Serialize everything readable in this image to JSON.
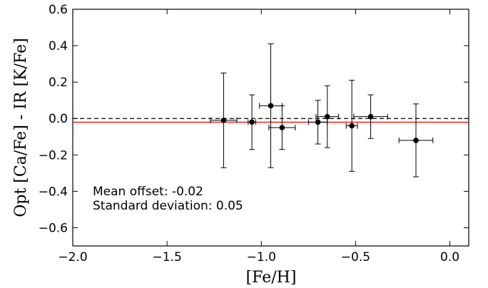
{
  "chart_data": {
    "type": "scatter",
    "title": "",
    "xlabel": "[Fe/H]",
    "ylabel": "Opt [Ca/Fe] - IR [K/Fe]",
    "xlim": [
      -2.0,
      0.1
    ],
    "ylim": [
      -0.7,
      0.6
    ],
    "x_ticks": [
      -2.0,
      -1.5,
      -1.0,
      -0.5,
      0.0
    ],
    "x_tick_labels": [
      "−2.0",
      "−1.5",
      "−1.0",
      "−0.5",
      "0.0"
    ],
    "y_ticks": [
      0.6,
      0.4,
      0.2,
      0.0,
      -0.2,
      -0.4,
      -0.6
    ],
    "y_tick_labels": [
      "0.6",
      "0.4",
      "0.2",
      "0.0",
      "−0.2",
      "−0.4",
      "−0.6"
    ],
    "grid": false,
    "legend": "none",
    "points": [
      {
        "x": -1.2,
        "y": -0.01,
        "xerr": 0.07,
        "yerr_low": 0.26,
        "yerr_high": 0.26
      },
      {
        "x": -1.05,
        "y": -0.02,
        "xerr": 0.02,
        "yerr_low": 0.15,
        "yerr_high": 0.15
      },
      {
        "x": -0.95,
        "y": 0.07,
        "xerr": 0.06,
        "yerr_low": 0.34,
        "yerr_high": 0.34
      },
      {
        "x": -0.89,
        "y": -0.05,
        "xerr": 0.07,
        "yerr_low": 0.12,
        "yerr_high": 0.12
      },
      {
        "x": -0.7,
        "y": -0.02,
        "xerr": 0.05,
        "yerr_low": 0.12,
        "yerr_high": 0.12
      },
      {
        "x": -0.65,
        "y": 0.01,
        "xerr": 0.06,
        "yerr_low": 0.17,
        "yerr_high": 0.17
      },
      {
        "x": -0.52,
        "y": -0.04,
        "xerr": 0.03,
        "yerr_low": 0.25,
        "yerr_high": 0.25
      },
      {
        "x": -0.42,
        "y": 0.01,
        "xerr": 0.09,
        "yerr_low": 0.12,
        "yerr_high": 0.12
      },
      {
        "x": -0.18,
        "y": -0.12,
        "xerr": 0.09,
        "yerr_low": 0.2,
        "yerr_high": 0.2
      }
    ],
    "reference_lines": [
      {
        "y": 0.0,
        "style": "dashed",
        "color": "#000000"
      },
      {
        "y": -0.02,
        "style": "solid",
        "color": "#ff0000"
      }
    ],
    "annotations": [
      {
        "text": "Mean offset: -0.02"
      },
      {
        "text": "Standard deviation: 0.05"
      }
    ]
  }
}
